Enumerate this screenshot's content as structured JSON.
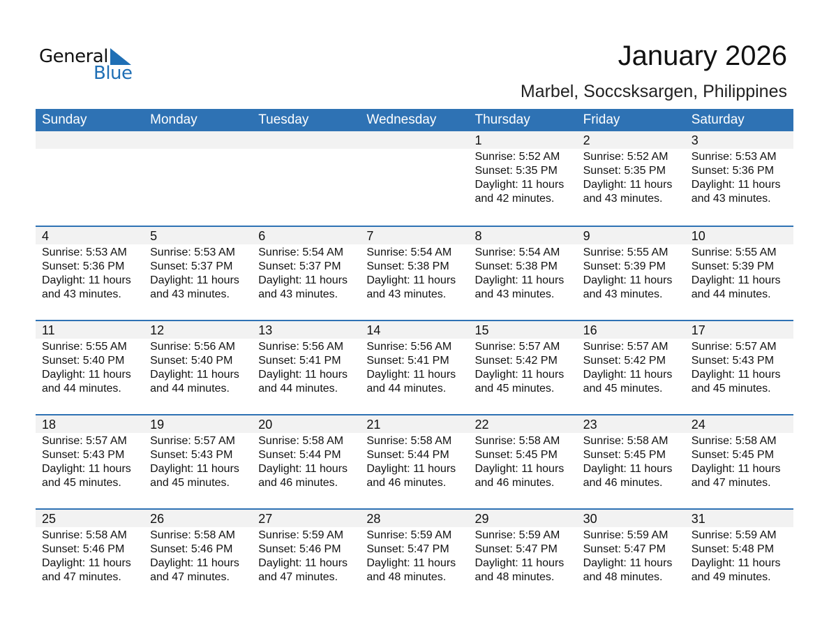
{
  "logo": {
    "text_general": "General",
    "text_blue": "Blue",
    "color": "#1f6fb5"
  },
  "header": {
    "title": "January 2026",
    "subtitle": "Marbel, Soccsksargen, Philippines"
  },
  "colors": {
    "accent": "#2e72b4",
    "band": "#f2f2f2"
  },
  "weekdays": [
    "Sunday",
    "Monday",
    "Tuesday",
    "Wednesday",
    "Thursday",
    "Friday",
    "Saturday"
  ],
  "weeks": [
    [
      null,
      null,
      null,
      null,
      {
        "day": "1",
        "sunrise": "Sunrise: 5:52 AM",
        "sunset": "Sunset: 5:35 PM",
        "daylight1": "Daylight: 11 hours",
        "daylight2": "and 42 minutes."
      },
      {
        "day": "2",
        "sunrise": "Sunrise: 5:52 AM",
        "sunset": "Sunset: 5:35 PM",
        "daylight1": "Daylight: 11 hours",
        "daylight2": "and 43 minutes."
      },
      {
        "day": "3",
        "sunrise": "Sunrise: 5:53 AM",
        "sunset": "Sunset: 5:36 PM",
        "daylight1": "Daylight: 11 hours",
        "daylight2": "and 43 minutes."
      }
    ],
    [
      {
        "day": "4",
        "sunrise": "Sunrise: 5:53 AM",
        "sunset": "Sunset: 5:36 PM",
        "daylight1": "Daylight: 11 hours",
        "daylight2": "and 43 minutes."
      },
      {
        "day": "5",
        "sunrise": "Sunrise: 5:53 AM",
        "sunset": "Sunset: 5:37 PM",
        "daylight1": "Daylight: 11 hours",
        "daylight2": "and 43 minutes."
      },
      {
        "day": "6",
        "sunrise": "Sunrise: 5:54 AM",
        "sunset": "Sunset: 5:37 PM",
        "daylight1": "Daylight: 11 hours",
        "daylight2": "and 43 minutes."
      },
      {
        "day": "7",
        "sunrise": "Sunrise: 5:54 AM",
        "sunset": "Sunset: 5:38 PM",
        "daylight1": "Daylight: 11 hours",
        "daylight2": "and 43 minutes."
      },
      {
        "day": "8",
        "sunrise": "Sunrise: 5:54 AM",
        "sunset": "Sunset: 5:38 PM",
        "daylight1": "Daylight: 11 hours",
        "daylight2": "and 43 minutes."
      },
      {
        "day": "9",
        "sunrise": "Sunrise: 5:55 AM",
        "sunset": "Sunset: 5:39 PM",
        "daylight1": "Daylight: 11 hours",
        "daylight2": "and 43 minutes."
      },
      {
        "day": "10",
        "sunrise": "Sunrise: 5:55 AM",
        "sunset": "Sunset: 5:39 PM",
        "daylight1": "Daylight: 11 hours",
        "daylight2": "and 44 minutes."
      }
    ],
    [
      {
        "day": "11",
        "sunrise": "Sunrise: 5:55 AM",
        "sunset": "Sunset: 5:40 PM",
        "daylight1": "Daylight: 11 hours",
        "daylight2": "and 44 minutes."
      },
      {
        "day": "12",
        "sunrise": "Sunrise: 5:56 AM",
        "sunset": "Sunset: 5:40 PM",
        "daylight1": "Daylight: 11 hours",
        "daylight2": "and 44 minutes."
      },
      {
        "day": "13",
        "sunrise": "Sunrise: 5:56 AM",
        "sunset": "Sunset: 5:41 PM",
        "daylight1": "Daylight: 11 hours",
        "daylight2": "and 44 minutes."
      },
      {
        "day": "14",
        "sunrise": "Sunrise: 5:56 AM",
        "sunset": "Sunset: 5:41 PM",
        "daylight1": "Daylight: 11 hours",
        "daylight2": "and 44 minutes."
      },
      {
        "day": "15",
        "sunrise": "Sunrise: 5:57 AM",
        "sunset": "Sunset: 5:42 PM",
        "daylight1": "Daylight: 11 hours",
        "daylight2": "and 45 minutes."
      },
      {
        "day": "16",
        "sunrise": "Sunrise: 5:57 AM",
        "sunset": "Sunset: 5:42 PM",
        "daylight1": "Daylight: 11 hours",
        "daylight2": "and 45 minutes."
      },
      {
        "day": "17",
        "sunrise": "Sunrise: 5:57 AM",
        "sunset": "Sunset: 5:43 PM",
        "daylight1": "Daylight: 11 hours",
        "daylight2": "and 45 minutes."
      }
    ],
    [
      {
        "day": "18",
        "sunrise": "Sunrise: 5:57 AM",
        "sunset": "Sunset: 5:43 PM",
        "daylight1": "Daylight: 11 hours",
        "daylight2": "and 45 minutes."
      },
      {
        "day": "19",
        "sunrise": "Sunrise: 5:57 AM",
        "sunset": "Sunset: 5:43 PM",
        "daylight1": "Daylight: 11 hours",
        "daylight2": "and 45 minutes."
      },
      {
        "day": "20",
        "sunrise": "Sunrise: 5:58 AM",
        "sunset": "Sunset: 5:44 PM",
        "daylight1": "Daylight: 11 hours",
        "daylight2": "and 46 minutes."
      },
      {
        "day": "21",
        "sunrise": "Sunrise: 5:58 AM",
        "sunset": "Sunset: 5:44 PM",
        "daylight1": "Daylight: 11 hours",
        "daylight2": "and 46 minutes."
      },
      {
        "day": "22",
        "sunrise": "Sunrise: 5:58 AM",
        "sunset": "Sunset: 5:45 PM",
        "daylight1": "Daylight: 11 hours",
        "daylight2": "and 46 minutes."
      },
      {
        "day": "23",
        "sunrise": "Sunrise: 5:58 AM",
        "sunset": "Sunset: 5:45 PM",
        "daylight1": "Daylight: 11 hours",
        "daylight2": "and 46 minutes."
      },
      {
        "day": "24",
        "sunrise": "Sunrise: 5:58 AM",
        "sunset": "Sunset: 5:45 PM",
        "daylight1": "Daylight: 11 hours",
        "daylight2": "and 47 minutes."
      }
    ],
    [
      {
        "day": "25",
        "sunrise": "Sunrise: 5:58 AM",
        "sunset": "Sunset: 5:46 PM",
        "daylight1": "Daylight: 11 hours",
        "daylight2": "and 47 minutes."
      },
      {
        "day": "26",
        "sunrise": "Sunrise: 5:58 AM",
        "sunset": "Sunset: 5:46 PM",
        "daylight1": "Daylight: 11 hours",
        "daylight2": "and 47 minutes."
      },
      {
        "day": "27",
        "sunrise": "Sunrise: 5:59 AM",
        "sunset": "Sunset: 5:46 PM",
        "daylight1": "Daylight: 11 hours",
        "daylight2": "and 47 minutes."
      },
      {
        "day": "28",
        "sunrise": "Sunrise: 5:59 AM",
        "sunset": "Sunset: 5:47 PM",
        "daylight1": "Daylight: 11 hours",
        "daylight2": "and 48 minutes."
      },
      {
        "day": "29",
        "sunrise": "Sunrise: 5:59 AM",
        "sunset": "Sunset: 5:47 PM",
        "daylight1": "Daylight: 11 hours",
        "daylight2": "and 48 minutes."
      },
      {
        "day": "30",
        "sunrise": "Sunrise: 5:59 AM",
        "sunset": "Sunset: 5:47 PM",
        "daylight1": "Daylight: 11 hours",
        "daylight2": "and 48 minutes."
      },
      {
        "day": "31",
        "sunrise": "Sunrise: 5:59 AM",
        "sunset": "Sunset: 5:48 PM",
        "daylight1": "Daylight: 11 hours",
        "daylight2": "and 49 minutes."
      }
    ]
  ]
}
